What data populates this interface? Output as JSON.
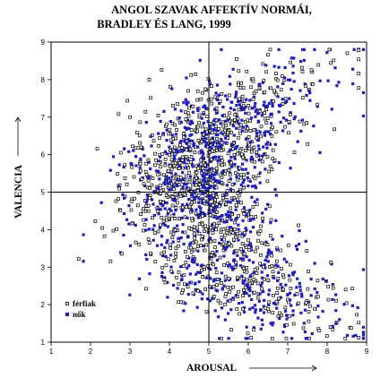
{
  "chart_data": {
    "type": "scatter",
    "title_lines": [
      "ANGOL SZAVAK AFFEKTÍV NORMÁI,",
      "BRADLEY ÉS LANG, 1999"
    ],
    "xlabel": "AROUSAL",
    "ylabel": "VALENCIA",
    "xlim": [
      1,
      9
    ],
    "ylim": [
      1,
      9
    ],
    "xticks": [
      1,
      2,
      3,
      4,
      5,
      6,
      7,
      8,
      9
    ],
    "yticks": [
      1,
      2,
      3,
      4,
      5,
      6,
      7,
      8,
      9
    ],
    "reference_lines": {
      "x": 5,
      "y": 5
    },
    "legend_position": "bottom-left",
    "series": [
      {
        "name": "férfiak",
        "marker": "open-square",
        "color": "#000000",
        "approx_count": 1000
      },
      {
        "name": "nők",
        "marker": "filled-square",
        "color": "#1f1fbf",
        "approx_count": 1000
      }
    ],
    "distribution_note": "C-shaped (boomerang) cloud: arousal rises as valence moves away from neutral 5; densest region around arousal 4-5.5, valence 4.5-7.5"
  }
}
